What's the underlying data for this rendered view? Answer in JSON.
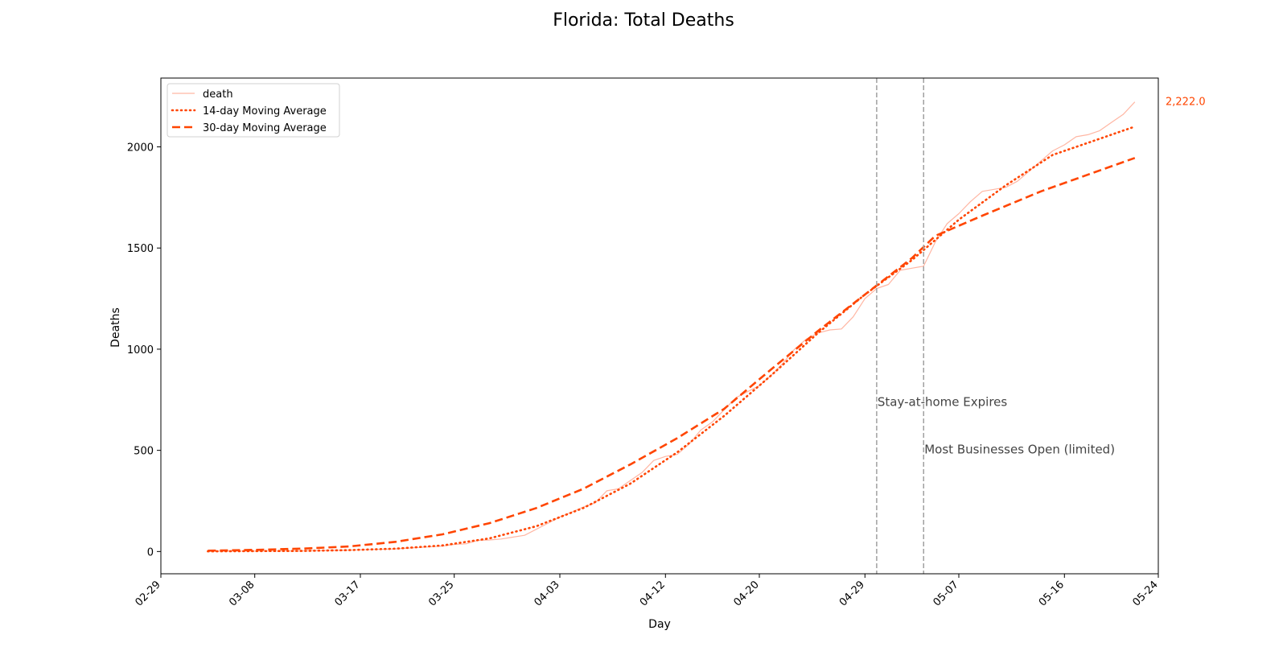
{
  "chart_data": {
    "type": "line",
    "title": "Florida: Total Deaths",
    "xlabel": "Day",
    "ylabel": "Deaths",
    "xlim": [
      "2020-02-29",
      "2020-05-24"
    ],
    "ylim": [
      -110,
      2340
    ],
    "x_tick_labels": [
      "02-29",
      "03-08",
      "03-17",
      "03-25",
      "04-03",
      "04-12",
      "04-20",
      "04-29",
      "05-07",
      "05-16",
      "05-24"
    ],
    "x_tick_dates": [
      "2020-02-29",
      "2020-03-08",
      "2020-03-17",
      "2020-03-25",
      "2020-04-03",
      "2020-04-12",
      "2020-04-20",
      "2020-04-29",
      "2020-05-07",
      "2020-05-16",
      "2020-05-24"
    ],
    "y_ticks": [
      0,
      500,
      1000,
      1500,
      2000
    ],
    "y_tick_labels": [
      "0",
      "500",
      "1000",
      "1500",
      "2000"
    ],
    "grid": false,
    "legend_position": "top-left",
    "colors": {
      "death": "#ffb6a3",
      "ma14": "#ff4500",
      "ma30": "#ff4500",
      "vline": "#a0a0a0",
      "annotation": "#444444",
      "last_value": "#ff4500"
    },
    "series": [
      {
        "name": "death",
        "style": "solid-thin",
        "points": [
          [
            "2020-03-04",
            2
          ],
          [
            "2020-03-06",
            2
          ],
          [
            "2020-03-08",
            2
          ],
          [
            "2020-03-10",
            2
          ],
          [
            "2020-03-12",
            3
          ],
          [
            "2020-03-14",
            5
          ],
          [
            "2020-03-16",
            7
          ],
          [
            "2020-03-18",
            10
          ],
          [
            "2020-03-20",
            13
          ],
          [
            "2020-03-22",
            20
          ],
          [
            "2020-03-24",
            27
          ],
          [
            "2020-03-25",
            35
          ],
          [
            "2020-03-26",
            38
          ],
          [
            "2020-03-27",
            55
          ],
          [
            "2020-03-28",
            57
          ],
          [
            "2020-03-29",
            62
          ],
          [
            "2020-03-31",
            80
          ],
          [
            "2020-04-02",
            140
          ],
          [
            "2020-04-03",
            170
          ],
          [
            "2020-04-05",
            220
          ],
          [
            "2020-04-06",
            240
          ],
          [
            "2020-04-07",
            300
          ],
          [
            "2020-04-08",
            310
          ],
          [
            "2020-04-09",
            350
          ],
          [
            "2020-04-10",
            390
          ],
          [
            "2020-04-11",
            450
          ],
          [
            "2020-04-12",
            470
          ],
          [
            "2020-04-13",
            480
          ],
          [
            "2020-04-14",
            530
          ],
          [
            "2020-04-15",
            600
          ],
          [
            "2020-04-16",
            640
          ],
          [
            "2020-04-17",
            700
          ],
          [
            "2020-04-18",
            760
          ],
          [
            "2020-04-19",
            790
          ],
          [
            "2020-04-20",
            820
          ],
          [
            "2020-04-21",
            870
          ],
          [
            "2020-04-22",
            930
          ],
          [
            "2020-04-23",
            1000
          ],
          [
            "2020-04-24",
            1050
          ],
          [
            "2020-04-25",
            1080
          ],
          [
            "2020-04-26",
            1095
          ],
          [
            "2020-04-27",
            1100
          ],
          [
            "2020-04-28",
            1160
          ],
          [
            "2020-04-29",
            1250
          ],
          [
            "2020-04-30",
            1300
          ],
          [
            "2020-05-01",
            1320
          ],
          [
            "2020-05-02",
            1390
          ],
          [
            "2020-05-03",
            1400
          ],
          [
            "2020-05-04",
            1410
          ],
          [
            "2020-05-05",
            1530
          ],
          [
            "2020-05-06",
            1620
          ],
          [
            "2020-05-07",
            1670
          ],
          [
            "2020-05-08",
            1730
          ],
          [
            "2020-05-09",
            1780
          ],
          [
            "2020-05-10",
            1790
          ],
          [
            "2020-05-11",
            1800
          ],
          [
            "2020-05-12",
            1830
          ],
          [
            "2020-05-13",
            1880
          ],
          [
            "2020-05-14",
            1930
          ],
          [
            "2020-05-15",
            1980
          ],
          [
            "2020-05-16",
            2010
          ],
          [
            "2020-05-17",
            2050
          ],
          [
            "2020-05-18",
            2060
          ],
          [
            "2020-05-19",
            2080
          ],
          [
            "2020-05-20",
            2120
          ],
          [
            "2020-05-21",
            2160
          ],
          [
            "2020-05-22",
            2222
          ]
        ]
      },
      {
        "name": "14-day Moving Average",
        "style": "dotted",
        "points": [
          [
            "2020-03-04",
            1
          ],
          [
            "2020-03-08",
            2
          ],
          [
            "2020-03-12",
            3
          ],
          [
            "2020-03-16",
            7
          ],
          [
            "2020-03-20",
            14
          ],
          [
            "2020-03-24",
            30
          ],
          [
            "2020-03-28",
            65
          ],
          [
            "2020-04-01",
            125
          ],
          [
            "2020-04-05",
            215
          ],
          [
            "2020-04-09",
            335
          ],
          [
            "2020-04-13",
            490
          ],
          [
            "2020-04-17",
            670
          ],
          [
            "2020-04-21",
            870
          ],
          [
            "2020-04-25",
            1080
          ],
          [
            "2020-04-29",
            1270
          ],
          [
            "2020-05-03",
            1440
          ],
          [
            "2020-05-07",
            1640
          ],
          [
            "2020-05-11",
            1810
          ],
          [
            "2020-05-15",
            1960
          ],
          [
            "2020-05-18",
            2020
          ],
          [
            "2020-05-22",
            2100
          ]
        ]
      },
      {
        "name": "30-day Moving Average",
        "style": "dashed",
        "points": [
          [
            "2020-03-04",
            4
          ],
          [
            "2020-03-08",
            8
          ],
          [
            "2020-03-12",
            14
          ],
          [
            "2020-03-16",
            25
          ],
          [
            "2020-03-20",
            48
          ],
          [
            "2020-03-24",
            85
          ],
          [
            "2020-03-28",
            140
          ],
          [
            "2020-04-01",
            215
          ],
          [
            "2020-04-05",
            310
          ],
          [
            "2020-04-09",
            430
          ],
          [
            "2020-04-13",
            560
          ],
          [
            "2020-04-17",
            705
          ],
          [
            "2020-04-21",
            900
          ],
          [
            "2020-04-25",
            1090
          ],
          [
            "2020-04-29",
            1270
          ],
          [
            "2020-05-03",
            1450
          ],
          [
            "2020-05-05",
            1560
          ],
          [
            "2020-05-09",
            1660
          ],
          [
            "2020-05-14",
            1780
          ],
          [
            "2020-05-22",
            1945
          ]
        ]
      }
    ],
    "vertical_lines": [
      {
        "date": "2020-04-30",
        "label": "Stay-at-home Expires",
        "label_y": 720
      },
      {
        "date": "2020-05-04",
        "label": "Most Businesses Open (limited)",
        "label_y": 485
      }
    ],
    "last_value": {
      "text": "2,222.0",
      "y": 2222
    }
  }
}
